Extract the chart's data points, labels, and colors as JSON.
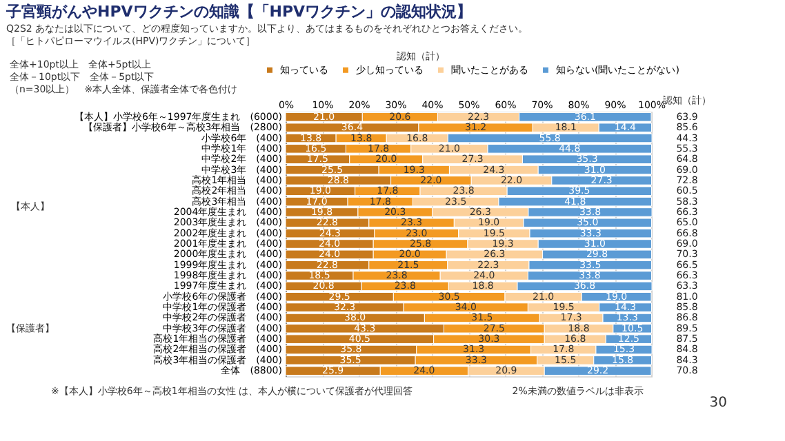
{
  "chart_data": {
    "type": "bar",
    "orientation": "horizontal",
    "stacked": true,
    "title": "子宮頸がんやHPVワクチンの知識【「HPVワクチン」の認知状況】",
    "subtitle": [
      "Q2S2 あなたは以下について、どの程度知っていますか。以下より、あてはまるものをそれぞれひとつお答えください。",
      "［「ヒトパピローマウイルス(HPV)ワクチン」について］"
    ],
    "categories": [
      "【本人】小学校6年～1997年度生まれ　(6000)",
      "【保護者】小学校6年～高校3年相当　(2800)",
      "小学校6年　(400)",
      "中学校1年　(400)",
      "中学校2年　(400)",
      "中学校3年　(400)",
      "高校1年相当　(400)",
      "高校2年相当　(400)",
      "高校3年相当　(400)",
      "2004年度生まれ　(400)",
      "2003年度生まれ　(400)",
      "2002年度生まれ　(400)",
      "2001年度生まれ　(400)",
      "2000年度生まれ　(400)",
      "1999年度生まれ　(400)",
      "1998年度生まれ　(400)",
      "1997年度生まれ　(400)",
      "小学校6年の保護者　(400)",
      "中学校1年の保護者　(400)",
      "中学校2年の保護者　(400)",
      "中学校3年の保護者　(400)",
      "高校1年相当の保護者　(400)",
      "高校2年相当の保護者　(400)",
      "高校3年相当の保護者　(400)",
      "全体　(8800)"
    ],
    "series": [
      {
        "name": "知っている",
        "color": "#c87a1c",
        "values": [
          21.0,
          36.4,
          13.8,
          16.5,
          17.5,
          25.5,
          28.8,
          19.0,
          17.0,
          19.8,
          22.8,
          24.3,
          24.0,
          24.0,
          22.8,
          18.5,
          20.8,
          29.5,
          32.3,
          38.0,
          43.3,
          40.5,
          35.8,
          35.5,
          25.9
        ],
        "value_labels": [
          "21.0",
          "36.4",
          "13.8",
          "16.5",
          "17.5",
          "25.5",
          "28.8",
          "19.0",
          "17.0",
          "19.8",
          "22.8",
          "24.3",
          "24.0",
          "24.0",
          "22.8",
          "18.5",
          "20.8",
          "29.5",
          "32.3",
          "38.0",
          "43.3",
          "40.5",
          "35.8",
          "35.5",
          "25.9"
        ]
      },
      {
        "name": "少し知っている",
        "color": "#f39a22",
        "values": [
          20.6,
          31.2,
          13.8,
          17.8,
          20.0,
          19.3,
          22.0,
          17.8,
          17.8,
          20.3,
          23.3,
          23.0,
          25.8,
          20.0,
          21.5,
          23.8,
          23.8,
          30.5,
          34.0,
          31.5,
          27.5,
          30.3,
          31.3,
          33.3,
          24.0
        ],
        "value_labels": [
          "20.6",
          "31.2",
          "13.8",
          "17.8",
          "20.0",
          "19.3",
          "22.0",
          "17.8",
          "17.8",
          "20.3",
          "23.3",
          "23.0",
          "25.8",
          "20.0",
          "21.5",
          "23.8",
          "23.8",
          "30.5",
          "34.0",
          "31.5",
          "27.5",
          "30.3",
          "31.3",
          "33.3",
          "24.0"
        ]
      },
      {
        "name": "聞いたことがある",
        "color": "#fcd09a",
        "values": [
          22.3,
          18.1,
          16.8,
          21.0,
          27.3,
          24.3,
          22.0,
          23.8,
          23.5,
          26.3,
          19.0,
          19.5,
          19.3,
          26.3,
          22.3,
          24.0,
          18.8,
          21.0,
          19.5,
          17.3,
          18.8,
          16.8,
          17.8,
          15.5,
          20.9
        ],
        "value_labels": [
          "22.3",
          "18.1",
          "16.8",
          "21.0",
          "27.3",
          "24.3",
          "22.0",
          "23.8",
          "23.5",
          "26.3",
          "19.0",
          "19.5",
          "19.3",
          "26.3",
          "22.3",
          "24.0",
          "18.8",
          "21.0",
          "19.5",
          "17.3",
          "18.8",
          "16.8",
          "17.8",
          "15.5",
          "20.9"
        ]
      },
      {
        "name": "知らない(聞いたことがない)",
        "color": "#5b9bd5",
        "values": [
          36.1,
          14.4,
          55.8,
          44.8,
          35.3,
          31.0,
          27.3,
          39.5,
          41.8,
          33.8,
          35.0,
          33.3,
          31.0,
          29.8,
          33.5,
          33.8,
          36.8,
          19.0,
          14.3,
          13.3,
          10.5,
          12.5,
          15.3,
          15.8,
          29.2
        ],
        "value_labels": [
          "36.1",
          "14.4",
          "55.8",
          "44.8",
          "35.3",
          "31.0",
          "27.3",
          "39.5",
          "41.8",
          "33.8",
          "35.0",
          "33.3",
          "31.0",
          "29.8",
          "33.5",
          "33.8",
          "36.8",
          "19.0",
          "14.3",
          "13.3",
          "10.5",
          "12.5",
          "15.3",
          "15.8",
          "29.2"
        ]
      }
    ],
    "xlim": [
      0,
      100
    ],
    "xticks": [
      {
        "value": 0,
        "label": "0%"
      },
      {
        "value": 10,
        "label": "10%"
      },
      {
        "value": 20,
        "label": "20%"
      },
      {
        "value": 30,
        "label": "30%"
      },
      {
        "value": 40,
        "label": "40%"
      },
      {
        "value": 50,
        "label": "50%"
      },
      {
        "value": 60,
        "label": "60%"
      },
      {
        "value": 70,
        "label": "70%"
      },
      {
        "value": 80,
        "label": "80%"
      },
      {
        "value": 90,
        "label": "90%"
      },
      {
        "value": 100,
        "label": "100%"
      }
    ],
    "grid": "x",
    "legend": "top",
    "annotations": [
      "認知（計）",
      "認知（計）",
      "全体+10pt以上　全体+5pt以上",
      "全体－10pt以下　全体－5pt以下",
      "（n=30以上）　※本人全体、保護者全体で各色付け",
      "【本人】",
      "【保護者】",
      "※【本人】小学校6年～高校1年相当の女性 は、本人が横について保護者が代理回答",
      "2%未満の数値ラベルは非表示",
      "30",
      "63.9",
      "85.6",
      "44.3",
      "55.3",
      "64.8",
      "69.0",
      "72.8",
      "60.5",
      "58.3",
      "66.3",
      "65.0",
      "66.8",
      "69.0",
      "70.3",
      "66.5",
      "66.3",
      "63.3",
      "81.0",
      "85.8",
      "86.8",
      "89.5",
      "87.5",
      "84.8",
      "84.3",
      "70.8"
    ]
  }
}
